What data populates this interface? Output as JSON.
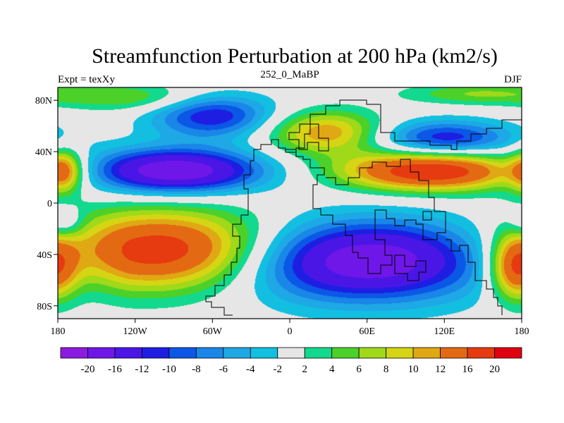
{
  "chart_data": {
    "type": "heatmap",
    "title": "Streamfunction Perturbation at 200 hPa (km2/s)",
    "left_string": "Expt = texXy",
    "center_string": "252_0_MaBP",
    "right_string": "DJF",
    "x_range": [
      -180,
      180
    ],
    "y_range": [
      -90,
      90
    ],
    "x_ticks": [
      {
        "value": -180,
        "label": "180"
      },
      {
        "value": -120,
        "label": "120W"
      },
      {
        "value": -60,
        "label": "60W"
      },
      {
        "value": 0,
        "label": "0"
      },
      {
        "value": 60,
        "label": "60E"
      },
      {
        "value": 120,
        "label": "120E"
      },
      {
        "value": 180,
        "label": "180"
      }
    ],
    "y_ticks": [
      {
        "value": 80,
        "label": "80N"
      },
      {
        "value": 40,
        "label": "40N"
      },
      {
        "value": 0,
        "label": "0"
      },
      {
        "value": -40,
        "label": "40S"
      },
      {
        "value": -80,
        "label": "80S"
      }
    ],
    "colorbar": {
      "labels": [
        "-20",
        "-16",
        "-12",
        "-10",
        "-8",
        "-6",
        "-4",
        "-2",
        "2",
        "4",
        "6",
        "8",
        "10",
        "12",
        "16",
        "20"
      ],
      "levels": [
        -20,
        -16,
        -12,
        -10,
        -8,
        -6,
        -4,
        -2,
        2,
        4,
        6,
        8,
        10,
        12,
        16,
        20
      ],
      "colors": [
        "#8b1be0",
        "#6f17e8",
        "#4a16e6",
        "#1e1ee3",
        "#0b57e6",
        "#1a86e8",
        "#1ea8e6",
        "#12bfe0",
        "#e6e6e6",
        "#12d98d",
        "#4bd12a",
        "#9fd91a",
        "#d6d514",
        "#e0a814",
        "#e36a12",
        "#e63a10",
        "#e00010"
      ]
    },
    "field_centers": [
      {
        "lon": -90,
        "lat": 25,
        "value": -20,
        "lon_width": 48,
        "lat_width": 12
      },
      {
        "lon": -95,
        "lat": -37,
        "value": 20,
        "lon_width": 62,
        "lat_width": 22
      },
      {
        "lon": 55,
        "lat": -45,
        "value": -20,
        "lon_width": 72,
        "lat_width": 22
      },
      {
        "lon": 110,
        "lat": 25,
        "value": 20,
        "lon_width": 50,
        "lat_width": 11
      },
      {
        "lon": -175,
        "lat": 25,
        "value": 12,
        "lon_width": 10,
        "lat_width": 12
      },
      {
        "lon": 28,
        "lat": 55,
        "value": 12,
        "lon_width": 32,
        "lat_width": 12
      },
      {
        "lon": -60,
        "lat": 68,
        "value": -12,
        "lon_width": 34,
        "lat_width": 12
      },
      {
        "lon": 120,
        "lat": 50,
        "value": -12,
        "lon_width": 38,
        "lat_width": 10
      },
      {
        "lon": 175,
        "lat": -50,
        "value": 16,
        "lon_width": 14,
        "lat_width": 18
      },
      {
        "lon": -175,
        "lat": -15,
        "value": -6,
        "lon_width": 10,
        "lat_width": 8
      },
      {
        "lon": -120,
        "lat": 82,
        "value": 6,
        "lon_width": 40,
        "lat_width": 8
      },
      {
        "lon": 145,
        "lat": 85,
        "value": 6,
        "lon_width": 40,
        "lat_width": 6
      }
    ]
  }
}
